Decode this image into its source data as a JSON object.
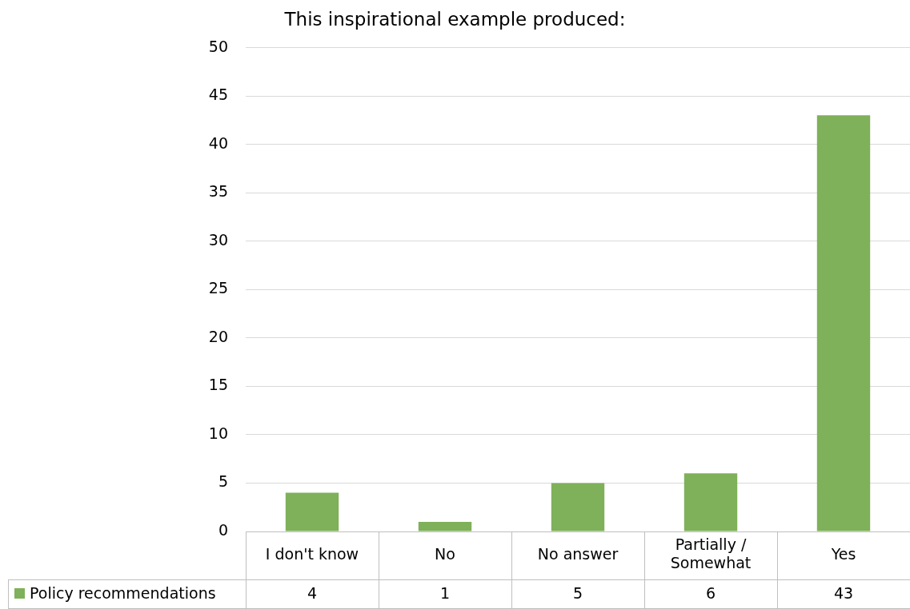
{
  "chart_data": {
    "type": "bar",
    "title": "This inspirational example produced:",
    "categories": [
      "I don't know",
      "No",
      "No answer",
      "Partially / Somewhat",
      "Yes"
    ],
    "series": [
      {
        "name": "Policy recommendations",
        "color": "#7fb05a",
        "values": [
          4,
          1,
          5,
          6,
          43
        ]
      }
    ],
    "ylim": [
      0,
      50
    ],
    "yticks": [
      0,
      5,
      10,
      15,
      20,
      25,
      30,
      35,
      40,
      45,
      50
    ],
    "grid": "y",
    "legend": "bottom",
    "data_labels": true
  }
}
